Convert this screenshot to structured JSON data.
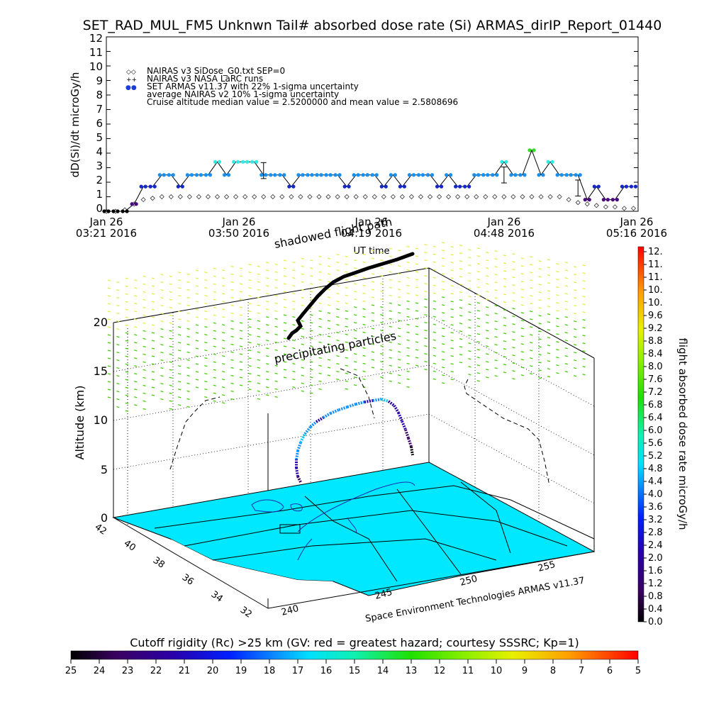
{
  "title": "SET_RAD_MUL_FM5 Unknwn Tail#  absorbed dose rate (Si) ARMAS_dirIP_Report_01440",
  "top_chart": {
    "ylabel": "dD(Si)/dt microGy/h",
    "yticks": [
      "0",
      "1",
      "2",
      "3",
      "4",
      "5",
      "6",
      "7",
      "8",
      "9",
      "10",
      "11",
      "12"
    ],
    "xlabel": "UT time",
    "xticks": [
      {
        "l1": "Jan 26",
        "l2": "03:21 2016"
      },
      {
        "l1": "Jan 26",
        "l2": "03:50 2016"
      },
      {
        "l1": "Jan 26",
        "l2": "04:19 2016"
      },
      {
        "l1": "Jan 26",
        "l2": "04:48 2016"
      },
      {
        "l1": "Jan 26",
        "l2": "05:16 2016"
      }
    ],
    "legend": [
      {
        "symbol": "◇◇",
        "text": "NAIRAS v3 SiDose_G0.txt SEP=0"
      },
      {
        "symbol": "++",
        "text": "NAIRAS v3 NASA LaRC runs"
      },
      {
        "symbol": "●●",
        "text": "SET ARMAS v11.37 with 22% 1-sigma uncertainty"
      },
      {
        "symbol": "",
        "text": "average NAIRAS v2 10% 1-sigma uncertainty"
      },
      {
        "symbol": "",
        "text": "Cruise altitude median value = 2.5200000 and mean value = 2.5808696"
      }
    ]
  },
  "three_d": {
    "zlabel": "Altitude (km)",
    "zticks": [
      "0",
      "5",
      "10",
      "15",
      "20"
    ],
    "lat_ticks": [
      "42",
      "40",
      "38",
      "36",
      "34",
      "32"
    ],
    "lon_ticks": [
      "240",
      "245",
      "250",
      "255"
    ],
    "label_shadowed": "shadowed flight path",
    "label_precip": "precipitating particles",
    "credit": "Space Environment Technologies ARMAS v11.37"
  },
  "right_colorbar": {
    "label": "flight absorbed dose rate microGy/h",
    "ticks": [
      "12.",
      "11.",
      "11.",
      "10.",
      "10.",
      "9.6",
      "9.2",
      "8.8",
      "8.4",
      "8.0",
      "7.6",
      "7.2",
      "6.8",
      "6.4",
      "6.0",
      "5.6",
      "5.2",
      "4.8",
      "4.4",
      "4.0",
      "3.6",
      "3.2",
      "2.8",
      "2.4",
      "2.0",
      "1.6",
      "1.2",
      "0.8",
      "0.4",
      "0.0"
    ]
  },
  "bottom_colorbar": {
    "label": "Cutoff rigidity (Rc) >25 km (GV: red = greatest hazard; courtesy SSSRC; Kp=1)",
    "ticks": [
      "25",
      "24",
      "23",
      "22",
      "21",
      "20",
      "19",
      "18",
      "17",
      "16",
      "15",
      "14",
      "13",
      "12",
      "11",
      "10",
      "9",
      "8",
      "7",
      "6",
      "5"
    ]
  },
  "colors": {
    "colormap": [
      "#000000",
      "#3a0060",
      "#2a00a8",
      "#0020ff",
      "#0a8cff",
      "#00e0ff",
      "#10f0b0",
      "#20e000",
      "#90f000",
      "#e8f000",
      "#ff9c00",
      "#ff0000"
    ],
    "map_fill": "#00e8ff",
    "precip_green": "#40d000",
    "precip_yellow": "#e4ec40"
  },
  "chart_data": {
    "type": "scatter",
    "title": "SET_RAD_MUL_FM5 Unknwn Tail#  absorbed dose rate (Si) ARMAS_dirIP_Report_01440",
    "xlabel": "UT time",
    "ylabel": "dD(Si)/dt microGy/h",
    "xlim": [
      "03:21",
      "05:16"
    ],
    "ylim": [
      0,
      12
    ],
    "x_minutes_from_0321": [
      0,
      2,
      4,
      6,
      8,
      10,
      12,
      14,
      16,
      18,
      20,
      22,
      24,
      26,
      28,
      30,
      32,
      34,
      36,
      38,
      40,
      42,
      44,
      46,
      48,
      50,
      52,
      54,
      56,
      58,
      60,
      62,
      64,
      66,
      68,
      70,
      72,
      74,
      76,
      78,
      80,
      82,
      84,
      86,
      88,
      90,
      92,
      94,
      96,
      98,
      100,
      102,
      104,
      106,
      108,
      110,
      112,
      114
    ],
    "series": [
      {
        "name": "SET ARMAS v11.37 with 22% 1-sigma uncertainty",
        "values": [
          0.0,
          0.0,
          0.0,
          0.5,
          1.7,
          1.7,
          2.5,
          2.5,
          1.7,
          2.5,
          2.5,
          2.5,
          3.4,
          2.5,
          3.4,
          3.4,
          3.4,
          2.5,
          2.5,
          2.5,
          1.7,
          2.5,
          2.5,
          2.5,
          2.5,
          2.5,
          1.7,
          2.5,
          2.5,
          2.5,
          1.7,
          2.5,
          1.7,
          2.5,
          2.5,
          2.5,
          1.7,
          2.5,
          1.7,
          1.7,
          2.5,
          2.5,
          2.5,
          3.4,
          2.5,
          2.5,
          4.2,
          2.5,
          3.4,
          2.5,
          2.5,
          2.5,
          0.8,
          1.7,
          0.8,
          0.8,
          1.7,
          1.7
        ]
      },
      {
        "name": "NAIRAS v3 SiDose_G0.txt SEP=0",
        "values": [
          0.0,
          0.0,
          0.1,
          0.5,
          0.8,
          0.9,
          1.0,
          1.0,
          1.0,
          1.0,
          1.0,
          1.0,
          1.0,
          1.0,
          1.0,
          1.0,
          1.0,
          1.0,
          1.0,
          1.0,
          1.0,
          1.0,
          1.0,
          1.0,
          1.0,
          1.0,
          1.0,
          1.0,
          1.0,
          1.0,
          1.0,
          1.0,
          1.0,
          1.0,
          1.0,
          1.0,
          1.0,
          1.0,
          1.0,
          1.0,
          1.0,
          1.0,
          1.0,
          1.0,
          1.0,
          1.0,
          1.0,
          1.0,
          1.0,
          1.0,
          0.8,
          0.6,
          0.5,
          0.4,
          0.3,
          0.3,
          0.2,
          0.2
        ]
      }
    ],
    "error_bars": [
      {
        "x": 34,
        "y": 2.8,
        "err": 0.55
      },
      {
        "x": 86,
        "y": 2.5,
        "err": 0.55
      },
      {
        "x": 102,
        "y": 1.6,
        "err": 0.55
      }
    ]
  }
}
